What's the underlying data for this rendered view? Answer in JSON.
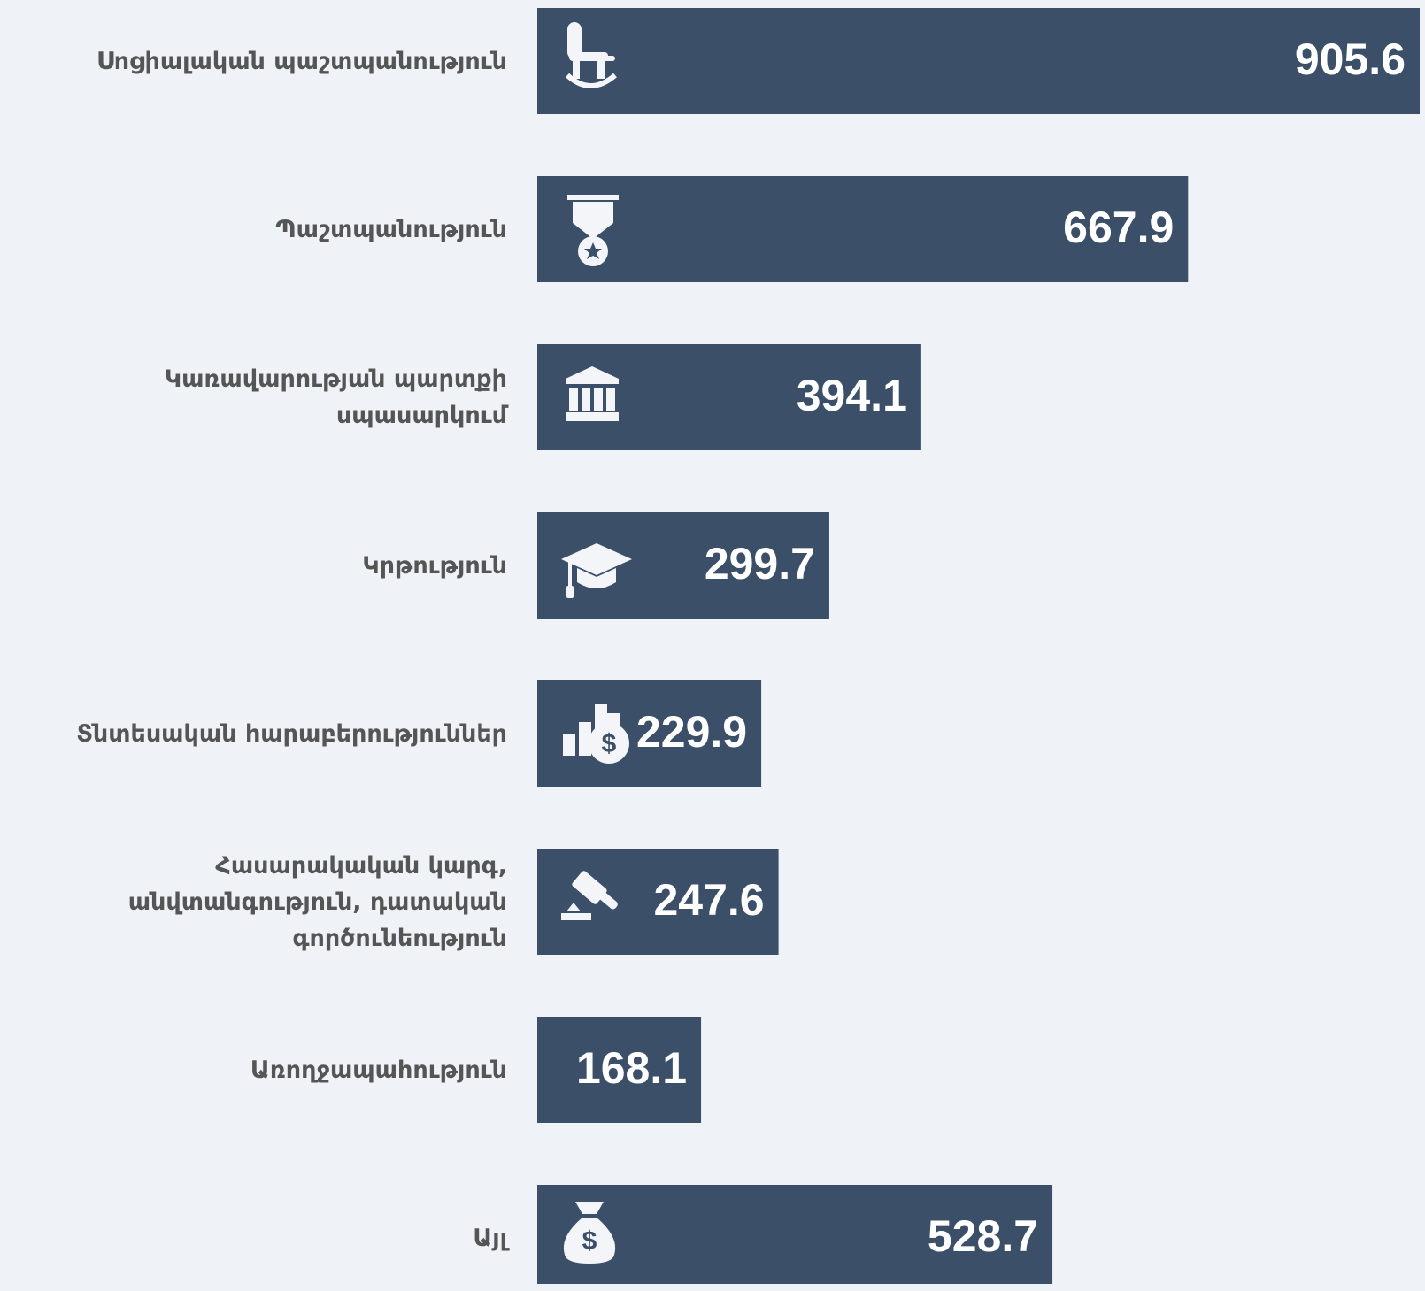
{
  "chart_data": {
    "type": "bar",
    "orientation": "horizontal",
    "categories": [
      "Սոցիալական պաշտպանություն",
      "Պաշտպանություն",
      "Կառավարության պարտքի\nսպասարկում",
      "Կրթություն",
      "Տնտեսական հարաբերություններ",
      "Հասարակական կարգ,\nանվտանգություն, դատական\nգործունեություն",
      "Առողջապահություն",
      "Այլ"
    ],
    "values": [
      905.6,
      667.9,
      394.1,
      299.7,
      229.9,
      247.6,
      168.1,
      528.7
    ],
    "color": "#3b4f68"
  }
}
